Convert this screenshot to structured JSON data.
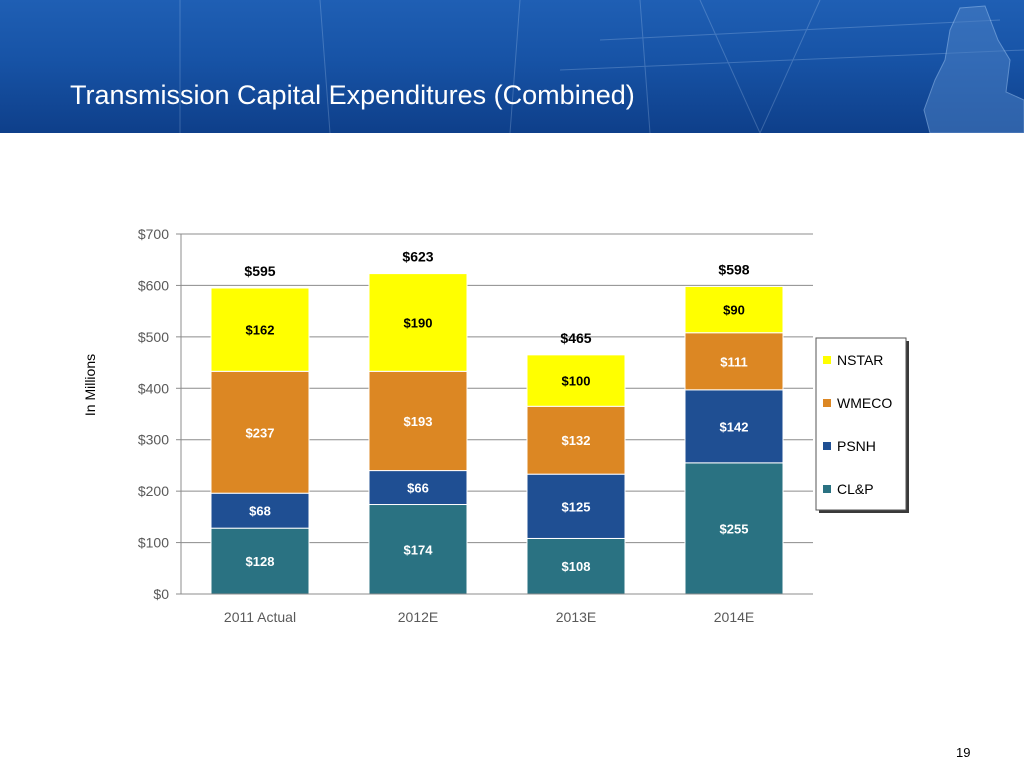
{
  "slide": {
    "title": "Transmission Capital Expenditures (Combined)",
    "page_number": "19"
  },
  "chart_data": {
    "type": "bar",
    "stacked": true,
    "categories": [
      "2011 Actual",
      "2012E",
      "2013E",
      "2014E"
    ],
    "series": [
      {
        "name": "CL&P",
        "color": "#2a7282",
        "values": [
          128,
          174,
          108,
          255
        ],
        "labels": [
          "$128",
          "$174",
          "$108",
          "$255"
        ],
        "label_color": "#ffffff"
      },
      {
        "name": "PSNH",
        "color": "#1f4f93",
        "values": [
          68,
          66,
          125,
          142
        ],
        "labels": [
          "$68",
          "$66",
          "$125",
          "$142"
        ],
        "label_color": "#ffffff"
      },
      {
        "name": "WMECO",
        "color": "#dc8723",
        "values": [
          237,
          193,
          132,
          111
        ],
        "labels": [
          "$237",
          "$193",
          "$132",
          "$111"
        ],
        "label_color": "#ffffff"
      },
      {
        "name": "NSTAR",
        "color": "#ffff00",
        "values": [
          162,
          190,
          100,
          90
        ],
        "labels": [
          "$162",
          "$190",
          "$100",
          "$90"
        ],
        "label_color": "#000000"
      }
    ],
    "totals": [
      595,
      623,
      465,
      598
    ],
    "total_labels": [
      "$595",
      "$623",
      "$465",
      "$598"
    ],
    "ylabel": "In Millions",
    "ylim": [
      0,
      700
    ],
    "yticks": [
      0,
      100,
      200,
      300,
      400,
      500,
      600,
      700
    ],
    "ytick_labels": [
      "$0",
      "$100",
      "$200",
      "$300",
      "$400",
      "$500",
      "$600",
      "$700"
    ],
    "legend_order": [
      "NSTAR",
      "WMECO",
      "PSNH",
      "CL&P"
    ],
    "legend_position": "right",
    "grid": true
  }
}
